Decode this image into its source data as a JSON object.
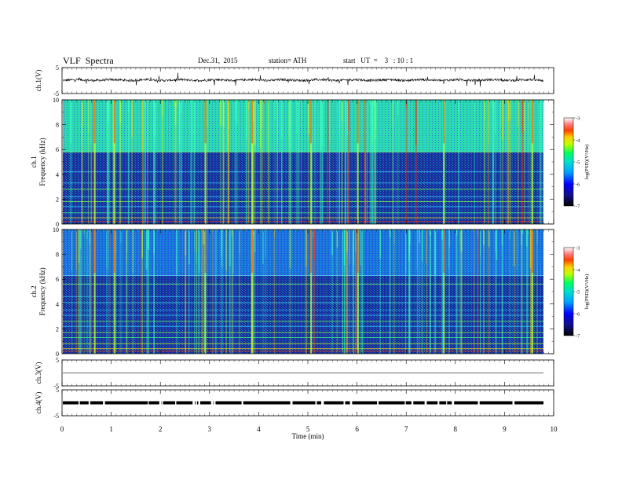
{
  "header": {
    "title": "VLF  Spectra",
    "date": "Dec.31,  2015",
    "station": "station= ATH",
    "start": "start   UT  =    3   : 10 : 1"
  },
  "chart_data": [
    {
      "type": "line",
      "name": "ch1-waveform",
      "ylabel": "ch.1(V)",
      "ylim": [
        -5,
        5
      ],
      "yticks": [
        "5",
        "-5"
      ],
      "baseline": 0.2
    },
    {
      "type": "heatmap",
      "name": "ch1-spectrogram",
      "ylabel_channel": "ch.1",
      "ylabel": "Frequency  (kHz)",
      "ylim": [
        0,
        10
      ],
      "yticks": [
        "0",
        "2",
        "4",
        "6",
        "8",
        "10"
      ],
      "colorbar": {
        "label": "log(PSD)(V²/Hz)",
        "range": [
          -7,
          -3
        ],
        "ticks": [
          "-3",
          "-4",
          "-5",
          "-6",
          "-7"
        ]
      }
    },
    {
      "type": "heatmap",
      "name": "ch2-spectrogram",
      "ylabel_channel": "ch.2",
      "ylabel": "Frequency  (kHz)",
      "ylim": [
        0,
        10
      ],
      "yticks": [
        "0",
        "2",
        "4",
        "6",
        "8",
        "10"
      ],
      "colorbar": {
        "label": "log(PSD)(V²/Hz)",
        "range": [
          -7,
          -3
        ],
        "ticks": [
          "-3",
          "-4",
          "-5",
          "-6",
          "-7"
        ]
      }
    },
    {
      "type": "line",
      "name": "ch3-waveform",
      "ylabel": "ch.3(V)",
      "ylim": [
        -5,
        5
      ],
      "yticks": [
        "5",
        "-5"
      ],
      "baseline": 0.0
    },
    {
      "type": "line",
      "name": "ch4-waveform",
      "ylabel": "ch.4(V)",
      "ylim": [
        -5,
        5
      ],
      "yticks": [
        "5",
        "-5"
      ],
      "baseline": 0.0
    }
  ],
  "xaxis": {
    "label": "Time  (min)",
    "ticks": [
      "0",
      "1",
      "2",
      "3",
      "4",
      "5",
      "6",
      "7",
      "8",
      "9",
      "10"
    ],
    "xlim": [
      0,
      10
    ]
  }
}
